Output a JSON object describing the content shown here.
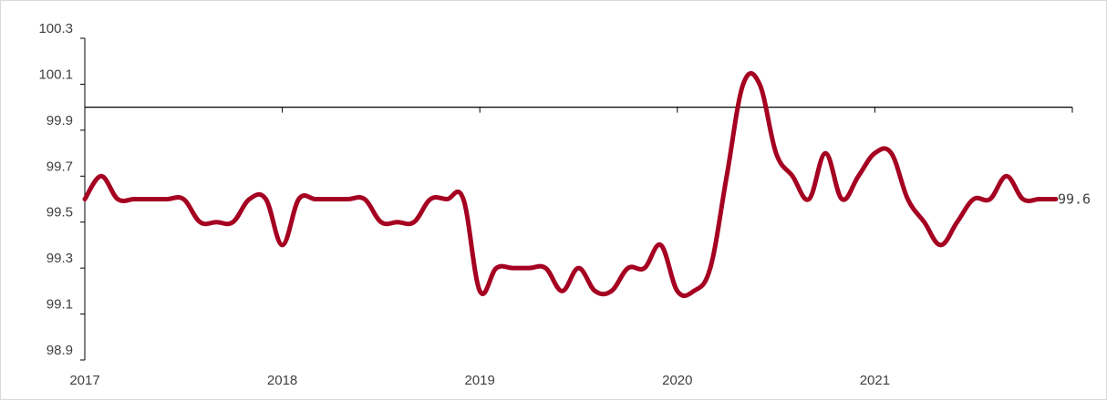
{
  "chart_data": {
    "type": "line",
    "title": "",
    "xlabel": "",
    "ylabel": "",
    "x_tick_labels": [
      "2017",
      "2018",
      "2019",
      "2020",
      "2021"
    ],
    "y_tick_labels": [
      "98.9",
      "99.1",
      "99.3",
      "99.5",
      "99.7",
      "99.9",
      "100.1",
      "100.3"
    ],
    "ylim": [
      98.9,
      100.3
    ],
    "reference_line": 100.0,
    "grid": false,
    "legend": "none",
    "line_color": "#a50021",
    "end_label": "99.6",
    "series": [
      {
        "x": [
          "2017-01",
          "2017-02",
          "2017-03",
          "2017-04",
          "2017-05",
          "2017-06",
          "2017-07",
          "2017-08",
          "2017-09",
          "2017-10",
          "2017-11",
          "2017-12",
          "2018-01",
          "2018-02",
          "2018-03",
          "2018-04",
          "2018-05",
          "2018-06",
          "2018-07",
          "2018-08",
          "2018-09",
          "2018-10",
          "2018-11",
          "2018-12",
          "2019-01",
          "2019-02",
          "2019-03",
          "2019-04",
          "2019-05",
          "2019-06",
          "2019-07",
          "2019-08",
          "2019-09",
          "2019-10",
          "2019-11",
          "2019-12",
          "2020-01",
          "2020-02",
          "2020-03",
          "2020-04",
          "2020-05",
          "2020-06",
          "2020-07",
          "2020-08",
          "2020-09",
          "2020-10",
          "2020-11",
          "2020-12",
          "2021-01",
          "2021-02",
          "2021-03",
          "2021-04",
          "2021-05",
          "2021-06",
          "2021-07",
          "2021-08",
          "2021-09",
          "2021-10",
          "2021-11",
          "2021-12"
        ],
        "values": [
          99.6,
          99.7,
          99.6,
          99.6,
          99.6,
          99.6,
          99.6,
          99.5,
          99.5,
          99.5,
          99.6,
          99.6,
          99.4,
          99.6,
          99.6,
          99.6,
          99.6,
          99.6,
          99.5,
          99.5,
          99.5,
          99.6,
          99.6,
          99.6,
          99.2,
          99.3,
          99.3,
          99.3,
          99.3,
          99.2,
          99.3,
          99.2,
          99.2,
          99.3,
          99.3,
          99.4,
          99.2,
          99.2,
          99.3,
          99.7,
          100.1,
          100.1,
          99.8,
          99.7,
          99.6,
          99.8,
          99.6,
          99.7,
          99.8,
          99.8,
          99.6,
          99.5,
          99.4,
          99.5,
          99.6,
          99.6,
          99.7,
          99.6,
          99.6,
          99.6
        ]
      }
    ]
  }
}
